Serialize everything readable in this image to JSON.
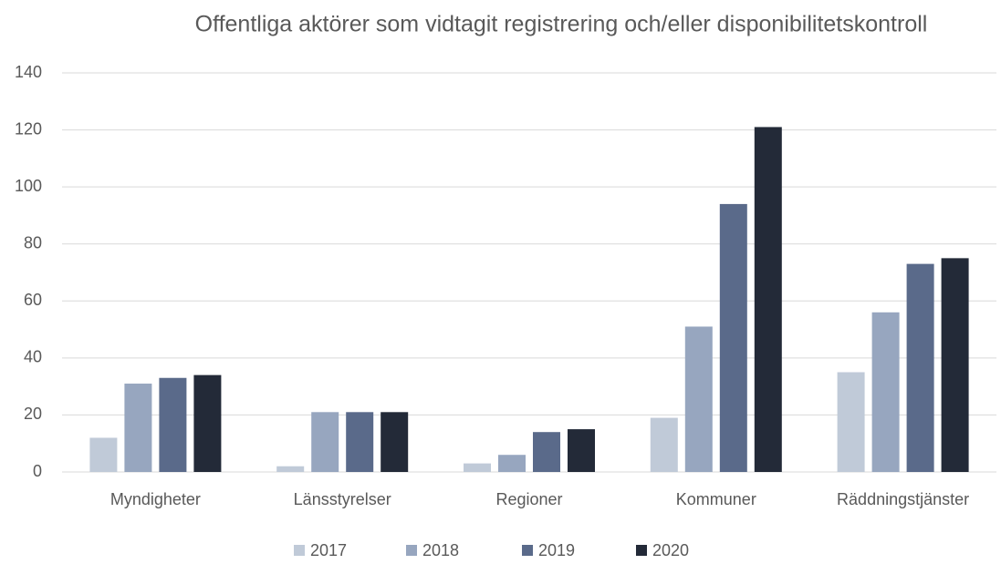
{
  "chart_data": {
    "type": "bar",
    "title": "Offentliga aktörer som vidtagit registrering och/eller disponibilitetskontroll",
    "categories": [
      "Myndigheter",
      "Länsstyrelser",
      "Regioner",
      "Kommuner",
      "Räddningstjänster"
    ],
    "series": [
      {
        "name": "2017",
        "color": "#c0cad8",
        "values": [
          12,
          2,
          3,
          19,
          35
        ]
      },
      {
        "name": "2018",
        "color": "#97a6bf",
        "values": [
          31,
          21,
          6,
          51,
          56
        ]
      },
      {
        "name": "2019",
        "color": "#5a6a8a",
        "values": [
          33,
          21,
          14,
          94,
          73
        ]
      },
      {
        "name": "2020",
        "color": "#232a38",
        "values": [
          34,
          21,
          15,
          121,
          75
        ]
      }
    ],
    "ylim": [
      0,
      140
    ],
    "yticks": [
      0,
      20,
      40,
      60,
      80,
      100,
      120,
      140
    ],
    "grid": true,
    "legend": "bottom"
  }
}
